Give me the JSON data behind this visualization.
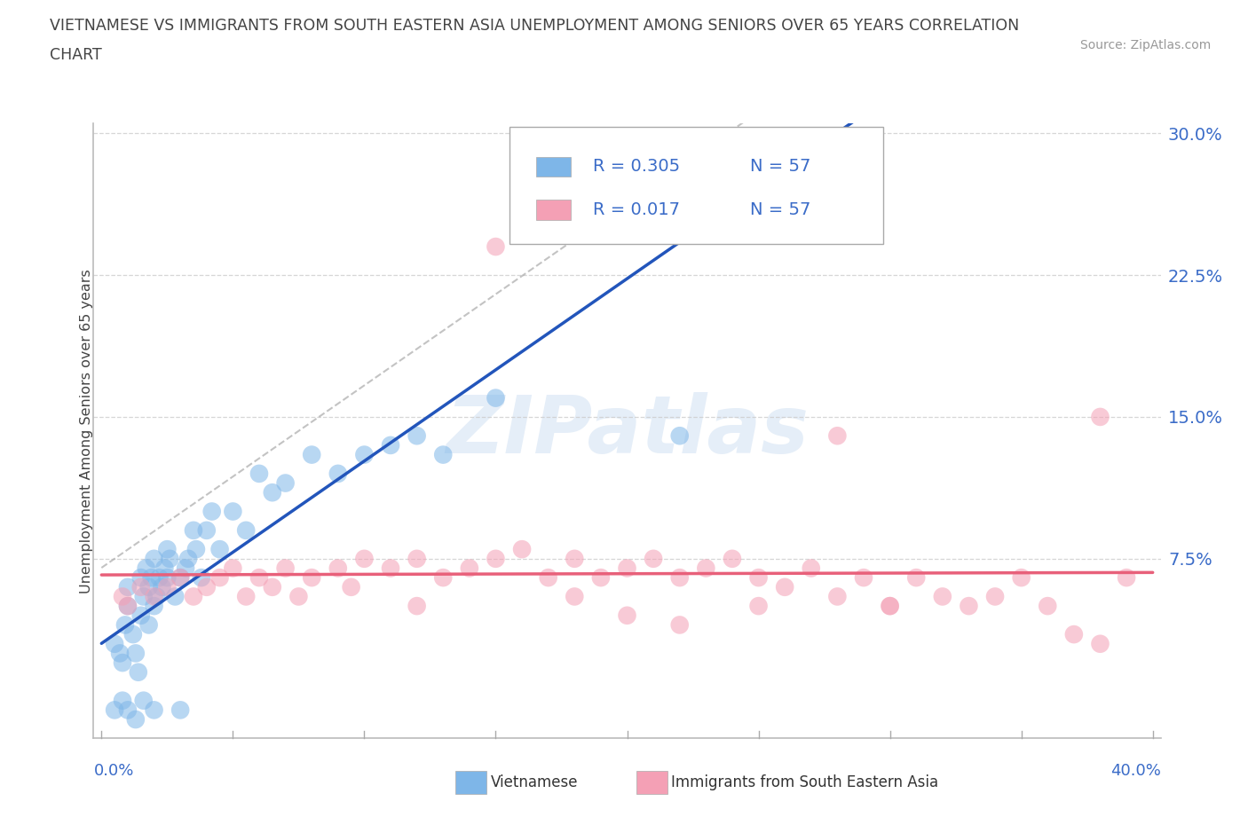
{
  "title_line1": "VIETNAMESE VS IMMIGRANTS FROM SOUTH EASTERN ASIA UNEMPLOYMENT AMONG SENIORS OVER 65 YEARS CORRELATION",
  "title_line2": "CHART",
  "source": "Source: ZipAtlas.com",
  "ylabel": "Unemployment Among Seniors over 65 years",
  "color_blue": "#7EB6E8",
  "color_pink": "#F4A0B5",
  "color_trend_blue": "#2255BB",
  "color_trend_pink": "#E8607A",
  "color_axis_label": "#3B6CC8",
  "watermark_color": "#E5EEF8",
  "background_color": "#FFFFFF",
  "grid_color": "#CCCCCC",
  "xlim": [
    -0.003,
    0.403
  ],
  "ylim": [
    -0.02,
    0.305
  ],
  "ytick_vals": [
    0.075,
    0.15,
    0.225,
    0.3
  ],
  "ytick_labels": [
    "7.5%",
    "15.0%",
    "22.5%",
    "30.0%"
  ],
  "legend_r1": "R = 0.305",
  "legend_n1": "N = 57",
  "legend_r2": "R = 0.017",
  "legend_n2": "N = 57",
  "viet_x": [
    0.005,
    0.007,
    0.008,
    0.009,
    0.01,
    0.01,
    0.012,
    0.013,
    0.014,
    0.015,
    0.015,
    0.016,
    0.017,
    0.018,
    0.018,
    0.019,
    0.02,
    0.02,
    0.021,
    0.022,
    0.023,
    0.024,
    0.025,
    0.025,
    0.026,
    0.028,
    0.03,
    0.032,
    0.033,
    0.035,
    0.036,
    0.038,
    0.04,
    0.042,
    0.045,
    0.05,
    0.055,
    0.06,
    0.065,
    0.07,
    0.08,
    0.09,
    0.1,
    0.11,
    0.12,
    0.13,
    0.15,
    0.17,
    0.19,
    0.22,
    0.005,
    0.008,
    0.01,
    0.013,
    0.016,
    0.02,
    0.03
  ],
  "viet_y": [
    0.03,
    0.025,
    0.02,
    0.04,
    0.05,
    0.06,
    0.035,
    0.025,
    0.015,
    0.045,
    0.065,
    0.055,
    0.07,
    0.06,
    0.04,
    0.065,
    0.075,
    0.05,
    0.055,
    0.065,
    0.06,
    0.07,
    0.065,
    0.08,
    0.075,
    0.055,
    0.065,
    0.07,
    0.075,
    0.09,
    0.08,
    0.065,
    0.09,
    0.1,
    0.08,
    0.1,
    0.09,
    0.12,
    0.11,
    0.115,
    0.13,
    0.12,
    0.13,
    0.135,
    0.14,
    0.13,
    0.16,
    0.26,
    0.25,
    0.14,
    -0.005,
    0.0,
    -0.005,
    -0.01,
    0.0,
    -0.005,
    -0.005
  ],
  "sea_x": [
    0.008,
    0.01,
    0.015,
    0.02,
    0.025,
    0.03,
    0.035,
    0.04,
    0.045,
    0.05,
    0.055,
    0.06,
    0.065,
    0.07,
    0.075,
    0.08,
    0.09,
    0.095,
    0.1,
    0.11,
    0.12,
    0.13,
    0.14,
    0.15,
    0.16,
    0.17,
    0.18,
    0.19,
    0.2,
    0.21,
    0.22,
    0.23,
    0.24,
    0.25,
    0.26,
    0.27,
    0.28,
    0.29,
    0.3,
    0.31,
    0.32,
    0.33,
    0.34,
    0.35,
    0.36,
    0.37,
    0.38,
    0.39,
    0.28,
    0.22,
    0.2,
    0.3,
    0.18,
    0.25,
    0.15,
    0.12,
    0.38
  ],
  "sea_y": [
    0.055,
    0.05,
    0.06,
    0.055,
    0.06,
    0.065,
    0.055,
    0.06,
    0.065,
    0.07,
    0.055,
    0.065,
    0.06,
    0.07,
    0.055,
    0.065,
    0.07,
    0.06,
    0.075,
    0.07,
    0.075,
    0.065,
    0.07,
    0.075,
    0.08,
    0.065,
    0.075,
    0.065,
    0.07,
    0.075,
    0.065,
    0.07,
    0.075,
    0.065,
    0.06,
    0.07,
    0.055,
    0.065,
    0.05,
    0.065,
    0.055,
    0.05,
    0.055,
    0.065,
    0.05,
    0.035,
    0.03,
    0.065,
    0.14,
    0.04,
    0.045,
    0.05,
    0.055,
    0.05,
    0.24,
    0.05,
    0.15
  ]
}
